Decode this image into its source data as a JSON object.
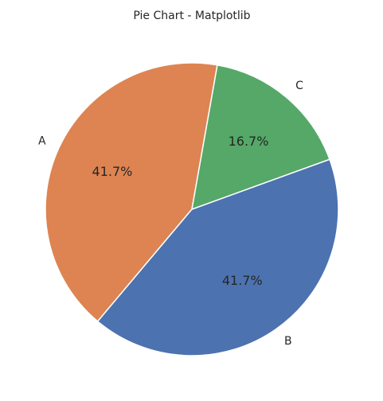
{
  "chart_data": {
    "type": "pie",
    "title": "Pie Chart - Matplotlib",
    "slices": [
      {
        "label": "A",
        "value": 41.7,
        "percent_label": "41.7%",
        "color": "#DD8452"
      },
      {
        "label": "B",
        "value": 41.7,
        "percent_label": "41.7%",
        "color": "#4C72B0"
      },
      {
        "label": "C",
        "value": 16.7,
        "percent_label": "16.7%",
        "color": "#55A868"
      }
    ],
    "start_angle_deg": 80,
    "direction": "counterclockwise"
  }
}
